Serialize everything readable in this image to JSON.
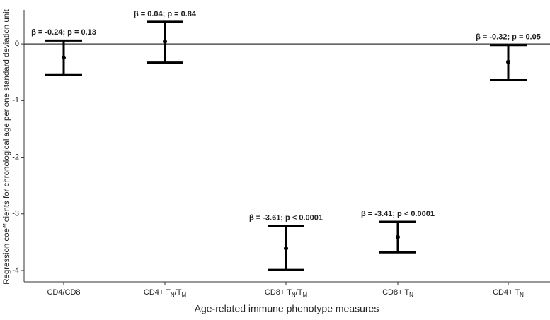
{
  "chart_data": {
    "type": "errorbar",
    "x_label": "Age-related immune phenotype measures",
    "y_label": "Regression coefficients for chronological age per one standard deviation unit",
    "categories": [
      "CD4/CD8",
      "CD4+ TN/TM",
      "CD8+ TN/TM",
      "CD8+ TN",
      "CD4+ TN"
    ],
    "values": [
      -0.24,
      0.04,
      -3.61,
      -3.41,
      -0.32
    ],
    "value_labels": [
      "β = -0.24; p = 0.13",
      "β = 0.04; p = 0.84",
      "β = -3.61; p < 0.0001",
      "β = -3.41; p < 0.0001",
      "β = -0.32; p = 0.05"
    ],
    "lower": [
      -0.55,
      -0.33,
      -3.99,
      -3.68,
      -0.64
    ],
    "upper": [
      0.06,
      0.39,
      -3.21,
      -3.14,
      -0.02
    ],
    "color": "#000000",
    "reference_line": 0,
    "ylim": [
      -4.2,
      0.6
    ],
    "yticks": [
      -4,
      -3,
      -2,
      -1,
      0
    ]
  }
}
